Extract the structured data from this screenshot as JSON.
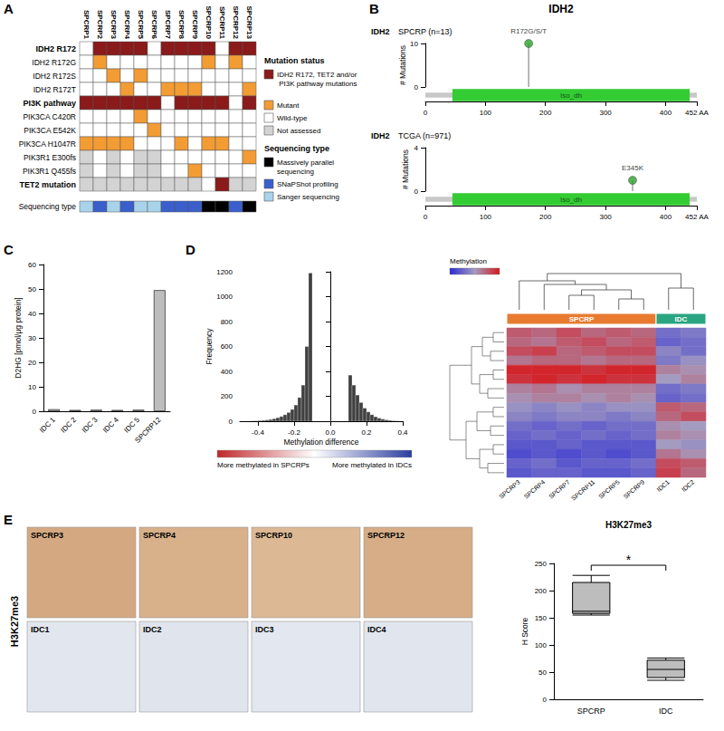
{
  "chart_data": [
    {
      "type": "oncoprint",
      "annotations": [
        "A"
      ],
      "categories": [
        "SPCRP1",
        "SPCRP2",
        "SPCRP3",
        "SPCRP4",
        "SPCRP5",
        "SPCRP6",
        "SPCRP7",
        "SPCRP8",
        "SPCRP9",
        "SPCRP10",
        "SPCRP11",
        "SPCRP12",
        "SPCRP13"
      ],
      "rows": [
        "IDH2 R172",
        "IDH2 R172G",
        "IDH2 R172S",
        "IDH2 R172T",
        "PI3K pathway",
        "PIK3CA C420R",
        "PIK3CA E542K",
        "PIK3CA H1047R",
        "PIK3R1 E300fs",
        "PIK3R1 Q455fs",
        "TET2 mutation"
      ],
      "cells": [
        [
          2,
          0,
          0,
          0,
          0,
          2,
          0,
          0,
          0,
          0,
          2,
          0,
          0
        ],
        [
          2,
          1,
          2,
          2,
          2,
          2,
          2,
          2,
          2,
          1,
          2,
          1,
          2
        ],
        [
          2,
          2,
          1,
          2,
          1,
          2,
          2,
          2,
          2,
          2,
          2,
          2,
          2
        ],
        [
          2,
          2,
          2,
          1,
          2,
          2,
          1,
          1,
          1,
          2,
          2,
          2,
          1
        ],
        [
          0,
          0,
          0,
          0,
          0,
          0,
          2,
          0,
          0,
          0,
          0,
          2,
          0
        ],
        [
          2,
          2,
          2,
          2,
          1,
          2,
          2,
          2,
          2,
          2,
          2,
          2,
          2
        ],
        [
          2,
          2,
          2,
          2,
          2,
          1,
          2,
          2,
          2,
          2,
          2,
          2,
          2
        ],
        [
          1,
          1,
          1,
          1,
          2,
          2,
          2,
          1,
          2,
          1,
          1,
          2,
          2
        ],
        [
          3,
          2,
          3,
          2,
          3,
          3,
          2,
          2,
          2,
          2,
          2,
          2,
          1
        ],
        [
          3,
          2,
          3,
          2,
          3,
          3,
          2,
          2,
          1,
          2,
          2,
          2,
          2
        ],
        [
          3,
          3,
          3,
          3,
          3,
          3,
          3,
          3,
          3,
          2,
          0,
          3,
          3
        ]
      ],
      "series": [
        {
          "name": "IDH2 R172, TET2 and/or PI3K pathway mutations",
          "color": "#8b1a1a"
        },
        {
          "name": "Mutant",
          "color": "#f39c34"
        },
        {
          "name": "Wild-type",
          "color": "#ffffff"
        },
        {
          "name": "Not assessed",
          "color": "#d3d3d3"
        }
      ],
      "legend_titles": [
        "Mutation status",
        "Sequencing type"
      ],
      "sequencing_label": "Sequencing type",
      "sequencing": [
        2,
        1,
        2,
        1,
        2,
        2,
        1,
        1,
        1,
        0,
        0,
        1,
        0
      ],
      "sequencing_series": [
        {
          "name": "Massively parallel sequencing",
          "color": "#000000"
        },
        {
          "name": "SNaPShot profiling",
          "color": "#3a5fcd"
        },
        {
          "name": "Sanger sequencing",
          "color": "#a9d3ea"
        }
      ]
    },
    {
      "type": "lollipop",
      "annotations": [
        "B"
      ],
      "title": "IDH2",
      "panels": [
        {
          "gene": "IDH2",
          "subtitle": "SPCRP (n=13)",
          "mutations": [
            {
              "position": 172,
              "count": 10,
              "label": "R172G/S/T"
            }
          ],
          "ylim": [
            0,
            10
          ],
          "yticks": [
            0,
            10
          ]
        },
        {
          "gene": "IDH2",
          "subtitle": "TCGA (n=971)",
          "mutations": [
            {
              "position": 345,
              "count": 1,
              "label": "E345K"
            }
          ],
          "ylim": [
            0,
            4
          ],
          "yticks": [
            0,
            4
          ]
        }
      ],
      "y_label": "# Mutations",
      "xlim": [
        0,
        452
      ],
      "xticks": [
        0,
        100,
        200,
        300,
        400,
        {
          "value": 452,
          "label": "452 AA"
        }
      ],
      "domains": [
        {
          "name": "Iso_dh",
          "start": 45,
          "end": 440,
          "color": "#33cc33"
        }
      ],
      "color": "#2ca02c"
    },
    {
      "type": "bar",
      "annotations": [
        "C"
      ],
      "categories": [
        "IDC 1",
        "IDC 2",
        "IDC 3",
        "IDC 4",
        "IDC 5",
        "SPCRP12"
      ],
      "values": [
        0.8,
        0.5,
        0.6,
        0.5,
        0.6,
        49.5
      ],
      "ylim": [
        0,
        60
      ],
      "yticks": [
        0,
        10,
        20,
        30,
        40,
        50,
        60
      ],
      "y_label": "D2HG [pmol/μg protein]",
      "color": "#bdbdbd"
    },
    {
      "type": "histogram",
      "annotations": [
        "D"
      ],
      "bins": [
        -0.5,
        -0.48,
        -0.46,
        -0.44,
        -0.42,
        -0.4,
        -0.38,
        -0.36,
        -0.34,
        -0.32,
        -0.3,
        -0.28,
        -0.26,
        -0.24,
        -0.22,
        -0.2,
        -0.18,
        -0.16,
        -0.14,
        -0.12,
        -0.1,
        -0.08,
        -0.06,
        -0.04,
        -0.02,
        0,
        0.02,
        0.04,
        0.06,
        0.08,
        0.1,
        0.12,
        0.14,
        0.16,
        0.18,
        0.2,
        0.22,
        0.24,
        0.26,
        0.28,
        0.3,
        0.32,
        0.34,
        0.36,
        0.38,
        0.4
      ],
      "values": [
        0,
        0,
        1,
        2,
        3,
        5,
        7,
        10,
        14,
        20,
        28,
        38,
        52,
        70,
        95,
        130,
        190,
        290,
        600,
        1190,
        0,
        0,
        0,
        0,
        0,
        0,
        0,
        0,
        0,
        0,
        370,
        290,
        210,
        150,
        105,
        75,
        52,
        36,
        25,
        17,
        11,
        7,
        4,
        2,
        1
      ],
      "xlim": [
        -0.5,
        0.4
      ],
      "xticks": [
        -0.4,
        -0.2,
        {
          "value": 0,
          "label": "0.0"
        },
        0.2,
        0.4
      ],
      "ylim": [
        0,
        1200
      ],
      "yticks": [
        0,
        200,
        400,
        600,
        800,
        1000,
        1200
      ],
      "x_label": "Methylation difference",
      "y_label": "Frequency",
      "color": "#404040",
      "gradient_labels": [
        "More methylated in SPCRPs",
        "More methylated in IDCs"
      ]
    },
    {
      "type": "clustered_heatmap",
      "categories": [
        "SPCRP3",
        "SPCRP4",
        "SPCRP7",
        "SPCRP11",
        "SPCRP5",
        "SPCRP9",
        "IDC1",
        "IDC2"
      ],
      "groups": [
        {
          "name": "SPCRP",
          "color": "#e87b2f",
          "members": [
            "SPCRP3",
            "SPCRP4",
            "SPCRP7",
            "SPCRP11",
            "SPCRP5",
            "SPCRP9"
          ]
        },
        {
          "name": "IDC",
          "color": "#2aa581",
          "members": [
            "IDC1",
            "IDC2"
          ]
        }
      ],
      "values": [
        [
          0.75,
          0.7,
          0.8,
          0.7,
          0.75,
          0.7,
          0.3,
          0.35
        ],
        [
          0.7,
          0.65,
          0.75,
          0.8,
          0.7,
          0.75,
          0.25,
          0.3
        ],
        [
          0.8,
          0.85,
          0.7,
          0.75,
          0.8,
          0.8,
          0.4,
          0.3
        ],
        [
          0.65,
          0.7,
          0.7,
          0.65,
          0.7,
          0.7,
          0.35,
          0.45
        ],
        [
          0.95,
          0.95,
          0.95,
          0.9,
          0.95,
          0.95,
          0.6,
          0.55
        ],
        [
          0.9,
          0.95,
          0.9,
          0.95,
          0.9,
          0.9,
          0.5,
          0.6
        ],
        [
          0.6,
          0.65,
          0.55,
          0.6,
          0.6,
          0.6,
          0.3,
          0.35
        ],
        [
          0.55,
          0.6,
          0.6,
          0.55,
          0.6,
          0.55,
          0.25,
          0.3
        ],
        [
          0.45,
          0.4,
          0.45,
          0.4,
          0.45,
          0.45,
          0.75,
          0.7
        ],
        [
          0.4,
          0.35,
          0.4,
          0.4,
          0.35,
          0.4,
          0.7,
          0.8
        ],
        [
          0.3,
          0.25,
          0.3,
          0.25,
          0.3,
          0.3,
          0.55,
          0.5
        ],
        [
          0.25,
          0.3,
          0.25,
          0.3,
          0.25,
          0.3,
          0.6,
          0.55
        ],
        [
          0.2,
          0.2,
          0.25,
          0.2,
          0.2,
          0.2,
          0.5,
          0.45
        ],
        [
          0.15,
          0.2,
          0.15,
          0.2,
          0.15,
          0.2,
          0.65,
          0.55
        ],
        [
          0.25,
          0.3,
          0.2,
          0.25,
          0.25,
          0.3,
          0.8,
          0.75
        ],
        [
          0.2,
          0.25,
          0.25,
          0.2,
          0.2,
          0.25,
          0.85,
          0.7
        ]
      ],
      "zlim": [
        0,
        1
      ],
      "colorbar_title": "Methylation",
      "column_dendrogram": [
        [
          4,
          5,
          0.3
        ],
        [
          2,
          3,
          0.4
        ],
        [
          9,
          8,
          0.55
        ],
        [
          1,
          10,
          0.7
        ],
        [
          0,
          11,
          0.8
        ],
        [
          6,
          7,
          0.6
        ],
        [
          12,
          13,
          1.0
        ]
      ],
      "row_dendrogram": [
        [
          0,
          1,
          0.2
        ],
        [
          2,
          3,
          0.25
        ],
        [
          16,
          17,
          0.4
        ],
        [
          4,
          5,
          0.2
        ],
        [
          6,
          7,
          0.3
        ],
        [
          19,
          20,
          0.45
        ],
        [
          18,
          21,
          0.6
        ],
        [
          8,
          9,
          0.2
        ],
        [
          10,
          11,
          0.25
        ],
        [
          23,
          24,
          0.5
        ],
        [
          12,
          13,
          0.2
        ],
        [
          14,
          15,
          0.3
        ],
        [
          26,
          27,
          0.45
        ],
        [
          25,
          28,
          0.7
        ],
        [
          22,
          29,
          1.0
        ]
      ]
    },
    {
      "type": "image_grid",
      "annotations": [
        "E"
      ],
      "row_label": "H3K27me3",
      "tiles": [
        "SPCRP3",
        "SPCRP4",
        "SPCRP10",
        "SPCRP12",
        "IDC1",
        "IDC2",
        "IDC3",
        "IDC4"
      ],
      "colors": [
        "#d4a982",
        "#d8b08a",
        "#dcb894",
        "#d6ad86",
        "#e2e6ee",
        "#e0e4ec",
        "#e3e7ef",
        "#e1e5ed"
      ]
    },
    {
      "type": "boxplot",
      "title": "H3K27me3",
      "categories": [
        "SPCRP",
        "IDC"
      ],
      "values": [
        [
          155,
          158,
          162,
          215,
          228
        ],
        [
          35,
          40,
          55,
          72,
          76
        ]
      ],
      "ylim": [
        0,
        250
      ],
      "yticks": [
        0,
        50,
        100,
        150,
        200,
        250
      ],
      "y_label": "H Score",
      "color": "#bdbdbd",
      "annotations": [
        "*"
      ]
    }
  ]
}
